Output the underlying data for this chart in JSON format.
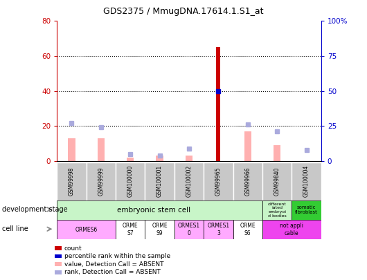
{
  "title": "GDS2375 / MmugDNA.17614.1.S1_at",
  "samples": [
    "GSM99998",
    "GSM99999",
    "GSM100000",
    "GSM100001",
    "GSM100002",
    "GSM99965",
    "GSM99966",
    "GSM99840",
    "GSM100004"
  ],
  "count_values": [
    0,
    0,
    0,
    0,
    0,
    65,
    0,
    0,
    0
  ],
  "percentile_rank": [
    null,
    null,
    null,
    null,
    null,
    50,
    null,
    null,
    null
  ],
  "absent_value": [
    13,
    13,
    2,
    3,
    3,
    null,
    17,
    9,
    null
  ],
  "absent_rank": [
    27,
    24,
    5,
    4,
    9,
    null,
    26,
    21,
    8
  ],
  "ylim_left": [
    0,
    80
  ],
  "ylim_right": [
    0,
    100
  ],
  "yticks_left": [
    0,
    20,
    40,
    60,
    80
  ],
  "yticks_right": [
    0,
    25,
    50,
    75,
    100
  ],
  "ytick_right_labels": [
    "0",
    "25",
    "50",
    "75",
    "100%"
  ],
  "bar_color_count": "#cc0000",
  "bar_color_absent": "#ffb0b0",
  "marker_color_rank": "#0000cc",
  "marker_color_absent_rank": "#aaaadd",
  "tick_color_left": "#cc0000",
  "tick_color_right": "#0000cc",
  "dev_stage_light_green": "#c8f5c8",
  "dev_stage_bright_green": "#33cc33",
  "cell_line_pink": "#ffaaff",
  "cell_line_magenta": "#ee44ee",
  "cell_line_white": "#ffffff",
  "grey_box": "#c8c8c8"
}
